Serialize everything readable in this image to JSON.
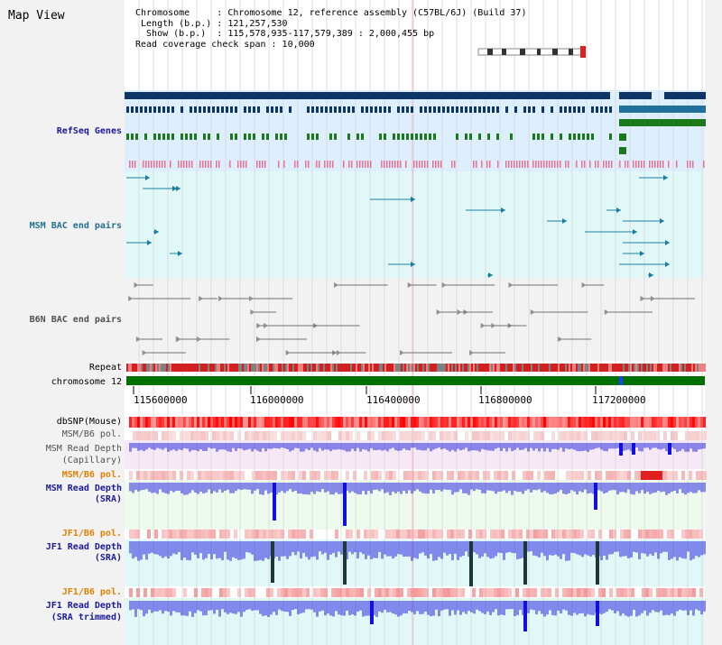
{
  "header": {
    "title": "Map View",
    "lines": [
      "Chromosome     : Chromosome 12, reference assembly (C57BL/6J) (Build 37)",
      " Length (b.p.) : 121,257,530",
      "  Show (b.p.)  : 115,578,935-117,579,389 : 2,000,455 bp",
      "Read coverage check span : 10,000"
    ]
  },
  "tracks": {
    "refseq": "RefSeq Genes",
    "msm_bac": "MSM BAC end pairs",
    "b6n_bac": "B6N BAC end pairs",
    "repeat": "Repeat",
    "chromosome": "chromosome 12",
    "dbsnp": "dbSNP(Mouse)",
    "msm_b6_pol_1": "MSM/B6 pol.",
    "msm_read_depth_cap_1": "MSM Read Depth",
    "msm_read_depth_cap_2": "(Capillary)",
    "msm_b6_pol_2": "MSM/B6 pol.",
    "msm_read_depth_sra_1": "MSM Read Depth",
    "msm_read_depth_sra_2": "(SRA)",
    "jf1_b6_pol_1": "JF1/B6 pol.",
    "jf1_read_depth_sra_1": "JF1 Read Depth",
    "jf1_read_depth_sra_2": "(SRA)",
    "jf1_b6_pol_2": "JF1/B6 pol.",
    "jf1_read_depth_trim_1": "JF1 Read Depth",
    "jf1_read_depth_trim_2": "(SRA trimmed)"
  },
  "axis": {
    "ticks": [
      "115600000",
      "116000000",
      "116400000",
      "116800000",
      "117200000"
    ]
  },
  "colors": {
    "refseq_dark": "#0d3566",
    "refseq_blue": "#1f6f9a",
    "refseq_green": "#1a7a1a",
    "refseq_pink": "#f07090",
    "msm_bac": "#1b7ea0",
    "b6n_bac": "#606060",
    "chromosome_bar": "#007000",
    "dbsnp": "#ff2020",
    "depth_blue": "#3030e0",
    "label_blue": "#1a1a9a",
    "label_orange": "#e08000",
    "label_teal": "#207090"
  }
}
